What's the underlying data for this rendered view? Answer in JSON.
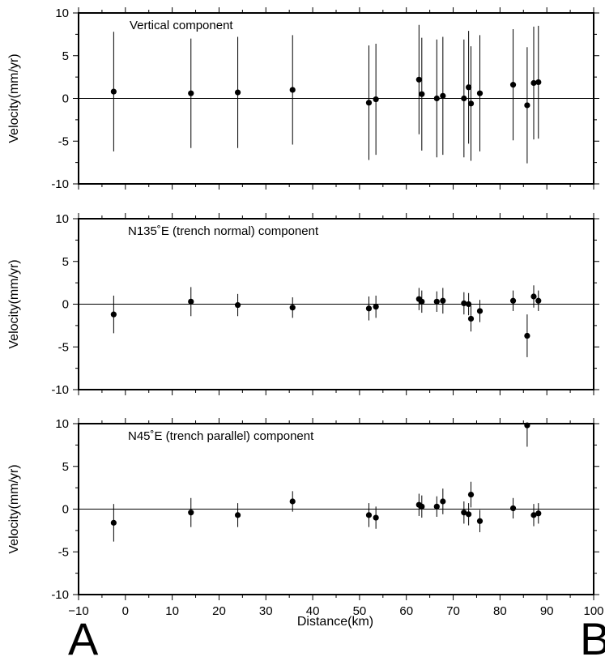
{
  "figure": {
    "xlabel": "Distance(km)",
    "end_labels": {
      "left": "A",
      "right": "B"
    }
  },
  "chart_data": [
    {
      "type": "scatter",
      "title": "Vertical component",
      "ylabel": "Velocity(mm/yr)",
      "xlabel": "Distance(km)",
      "xlim": [
        -10,
        100
      ],
      "ylim": [
        -10,
        10
      ],
      "x_ticks": [
        -10,
        0,
        10,
        20,
        30,
        40,
        50,
        60,
        70,
        80,
        90,
        100
      ],
      "y_ticks": [
        -10,
        -5,
        0,
        5,
        10
      ],
      "zero_line": true,
      "grid": false,
      "points": [
        {
          "x": -2.5,
          "y": 0.8,
          "err": 7.0
        },
        {
          "x": 14.0,
          "y": 0.6,
          "err": 6.4
        },
        {
          "x": 24.0,
          "y": 0.7,
          "err": 6.5
        },
        {
          "x": 35.7,
          "y": 1.0,
          "err": 6.4
        },
        {
          "x": 52.0,
          "y": -0.5,
          "err": 6.7
        },
        {
          "x": 53.5,
          "y": -0.1,
          "err": 6.5
        },
        {
          "x": 62.7,
          "y": 2.2,
          "err": 6.4
        },
        {
          "x": 63.3,
          "y": 0.5,
          "err": 6.6
        },
        {
          "x": 66.5,
          "y": 0.0,
          "err": 6.9
        },
        {
          "x": 67.8,
          "y": 0.3,
          "err": 6.9
        },
        {
          "x": 72.3,
          "y": 0.0,
          "err": 6.9
        },
        {
          "x": 73.3,
          "y": 1.3,
          "err": 6.6
        },
        {
          "x": 73.8,
          "y": -0.6,
          "err": 6.7
        },
        {
          "x": 75.7,
          "y": 0.6,
          "err": 6.8
        },
        {
          "x": 82.8,
          "y": 1.6,
          "err": 6.5
        },
        {
          "x": 85.8,
          "y": -0.8,
          "err": 6.8
        },
        {
          "x": 87.2,
          "y": 1.8,
          "err": 6.6
        },
        {
          "x": 88.2,
          "y": 1.9,
          "err": 6.6
        }
      ]
    },
    {
      "type": "scatter",
      "title": "N135˚E (trench normal) component",
      "ylabel": "Velocity(mm/yr)",
      "xlabel": "Distance(km)",
      "xlim": [
        -10,
        100
      ],
      "ylim": [
        -10,
        10
      ],
      "x_ticks": [
        -10,
        0,
        10,
        20,
        30,
        40,
        50,
        60,
        70,
        80,
        90,
        100
      ],
      "y_ticks": [
        -10,
        -5,
        0,
        5,
        10
      ],
      "zero_line": true,
      "grid": false,
      "points": [
        {
          "x": -2.5,
          "y": -1.2,
          "err": 2.2
        },
        {
          "x": 14.0,
          "y": 0.3,
          "err": 1.7
        },
        {
          "x": 24.0,
          "y": -0.1,
          "err": 1.3
        },
        {
          "x": 35.7,
          "y": -0.4,
          "err": 1.2
        },
        {
          "x": 52.0,
          "y": -0.5,
          "err": 1.4
        },
        {
          "x": 53.5,
          "y": -0.3,
          "err": 1.3
        },
        {
          "x": 62.7,
          "y": 0.6,
          "err": 1.3
        },
        {
          "x": 63.3,
          "y": 0.3,
          "err": 1.3
        },
        {
          "x": 66.5,
          "y": 0.3,
          "err": 1.2
        },
        {
          "x": 67.8,
          "y": 0.4,
          "err": 1.5
        },
        {
          "x": 72.3,
          "y": 0.1,
          "err": 1.3
        },
        {
          "x": 73.3,
          "y": 0.0,
          "err": 1.3
        },
        {
          "x": 73.8,
          "y": -1.7,
          "err": 1.5
        },
        {
          "x": 75.7,
          "y": -0.8,
          "err": 1.3
        },
        {
          "x": 82.8,
          "y": 0.4,
          "err": 1.2
        },
        {
          "x": 85.8,
          "y": -3.7,
          "err": 2.5
        },
        {
          "x": 87.2,
          "y": 0.9,
          "err": 1.3
        },
        {
          "x": 88.2,
          "y": 0.4,
          "err": 1.2
        }
      ]
    },
    {
      "type": "scatter",
      "title": "N45˚E (trench parallel) component",
      "ylabel": "Velocity(mm/yr)",
      "xlabel": "Distance(km)",
      "xlim": [
        -10,
        100
      ],
      "ylim": [
        -10,
        10
      ],
      "x_ticks": [
        -10,
        0,
        10,
        20,
        30,
        40,
        50,
        60,
        70,
        80,
        90,
        100
      ],
      "y_ticks": [
        -10,
        -5,
        0,
        5,
        10
      ],
      "zero_line": true,
      "grid": false,
      "points": [
        {
          "x": -2.5,
          "y": -1.6,
          "err": 2.2
        },
        {
          "x": 14.0,
          "y": -0.4,
          "err": 1.7
        },
        {
          "x": 24.0,
          "y": -0.7,
          "err": 1.4
        },
        {
          "x": 35.7,
          "y": 0.9,
          "err": 1.2
        },
        {
          "x": 52.0,
          "y": -0.7,
          "err": 1.4
        },
        {
          "x": 53.5,
          "y": -1.0,
          "err": 1.3
        },
        {
          "x": 62.7,
          "y": 0.5,
          "err": 1.3
        },
        {
          "x": 63.3,
          "y": 0.3,
          "err": 1.3
        },
        {
          "x": 66.5,
          "y": 0.3,
          "err": 1.2
        },
        {
          "x": 67.8,
          "y": 0.9,
          "err": 1.5
        },
        {
          "x": 72.3,
          "y": -0.4,
          "err": 1.3
        },
        {
          "x": 73.3,
          "y": -0.6,
          "err": 1.3
        },
        {
          "x": 73.8,
          "y": 1.7,
          "err": 1.5
        },
        {
          "x": 75.7,
          "y": -1.4,
          "err": 1.3
        },
        {
          "x": 82.8,
          "y": 0.1,
          "err": 1.2
        },
        {
          "x": 85.8,
          "y": 9.8,
          "err": 2.5
        },
        {
          "x": 87.2,
          "y": -0.7,
          "err": 1.3
        },
        {
          "x": 88.2,
          "y": -0.5,
          "err": 1.2
        }
      ]
    }
  ]
}
